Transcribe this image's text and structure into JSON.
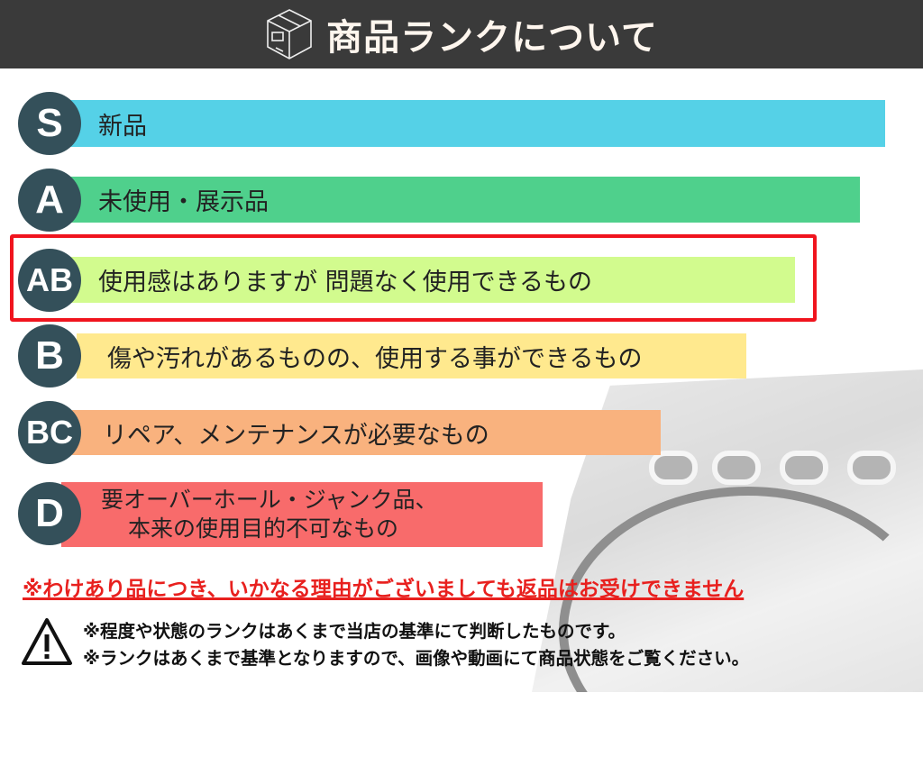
{
  "header": {
    "title": "商品ランクについて",
    "icon": "box-icon"
  },
  "ranks": [
    {
      "rank": "S",
      "label": "新品",
      "color": "#55d1e7"
    },
    {
      "rank": "A",
      "label": "未使用・展示品",
      "color": "#4fd08c"
    },
    {
      "rank": "AB",
      "label": "使用感はありますが 問題なく使用できるもの",
      "color": "#d2fb8e",
      "highlighted": true
    },
    {
      "rank": "B",
      "label": "傷や汚れがあるものの、使用する事ができるもの",
      "color": "#ffe98e"
    },
    {
      "rank": "BC",
      "label": "リペア、メンテナンスが必要なもの",
      "color": "#f9b27e"
    },
    {
      "rank": "D",
      "label": "要オーバーホール・ジャンク品、",
      "label2": "本来の使用目的不可なもの",
      "color": "#f86b6b"
    }
  ],
  "colors": {
    "header_bg": "#3a3a3a",
    "circle": "#34505a",
    "highlight_border": "#f0141e",
    "notice": "#e8201e"
  },
  "notice": "※わけあり品につき、いかなる理由がございましても返品はお受けできません",
  "warnings": [
    "※程度や状態のランクはあくまで当店の基準にて判断したものです。",
    "※ランクはあくまで基準となりますので、画像や動画にて商品状態をご覧ください。"
  ]
}
